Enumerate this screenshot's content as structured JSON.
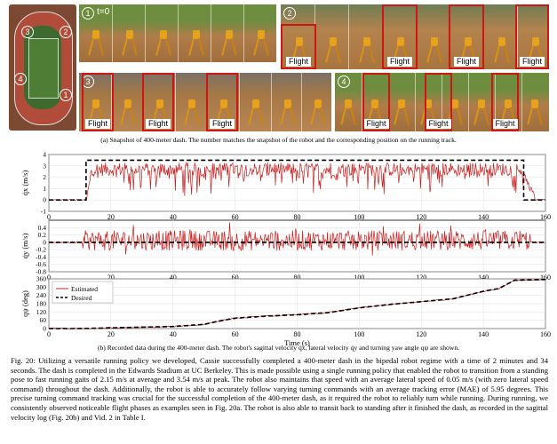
{
  "snapshots": {
    "map_markers": [
      "3",
      "2",
      "4",
      "1"
    ],
    "panel1": {
      "number": "1",
      "time_label": "t=0"
    },
    "panel2": {
      "number": "2",
      "flight_labels": [
        "Flight",
        "Flight",
        "Flight",
        "Flight"
      ]
    },
    "panel3": {
      "number": "3",
      "flight_labels": [
        "Flight",
        "Flight",
        "Flight"
      ]
    },
    "panel4": {
      "number": "4",
      "flight_labels": [
        "Flight",
        "Flight",
        "Flight"
      ]
    },
    "caption": "(a) Snapshot of 400-meter dash. The number matches the snapshot of the robot and the corresponding position on the running track."
  },
  "chart_data": [
    {
      "type": "line",
      "ylabel": "q̇x (m/s)",
      "ylim": [
        -1,
        4
      ],
      "yticks": [
        "4",
        "3",
        "2",
        "1",
        "0",
        "-1"
      ],
      "xlim": [
        0,
        160
      ],
      "xticks": [
        "0",
        "20",
        "40",
        "60",
        "80",
        "100",
        "120",
        "140",
        "160"
      ],
      "series": [
        {
          "role": "estimated",
          "color": "#c81e1e",
          "mean": 2.15,
          "peak": 3.54,
          "start": 12,
          "end": 153
        },
        {
          "role": "desired",
          "color": "#000000",
          "x": [
            0,
            12,
            12,
            153,
            153,
            160
          ],
          "y": [
            0,
            0,
            3.5,
            3.5,
            0,
            0
          ]
        }
      ]
    },
    {
      "type": "line",
      "ylabel": "q̇y (m/s)",
      "ylim": [
        -0.8,
        0.6
      ],
      "yticks": [
        "0.4",
        "0.2",
        "0",
        "-0.2",
        "-0.4",
        "-0.6",
        "-0.8"
      ],
      "xlim": [
        0,
        160
      ],
      "xticks": [
        "0",
        "20",
        "40",
        "60",
        "80",
        "100",
        "120",
        "140",
        "160"
      ],
      "series": [
        {
          "role": "estimated",
          "color": "#c81e1e",
          "mean": 0.05
        },
        {
          "role": "desired",
          "color": "#000000",
          "x": [
            0,
            160
          ],
          "y": [
            0,
            0
          ]
        }
      ]
    },
    {
      "type": "line",
      "ylabel": "qψ (deg)",
      "xlabel": "Time (s)",
      "ylim": [
        0,
        360
      ],
      "yticks": [
        "360",
        "300",
        "240",
        "180",
        "120",
        "60",
        "0"
      ],
      "xlim": [
        0,
        160
      ],
      "xticks": [
        "0",
        "20",
        "40",
        "60",
        "80",
        "100",
        "120",
        "140",
        "160"
      ],
      "legend": {
        "position": "top-left",
        "entries": [
          "Estimated",
          "Desired"
        ]
      },
      "series": [
        {
          "name": "Estimated",
          "color": "#c81e1e"
        },
        {
          "name": "Desired",
          "color": "#000000",
          "x": [
            0,
            10,
            20,
            30,
            40,
            50,
            55,
            60,
            70,
            80,
            90,
            100,
            110,
            120,
            130,
            140,
            145,
            150,
            160
          ],
          "y": [
            0,
            0,
            5,
            10,
            15,
            30,
            55,
            75,
            90,
            100,
            115,
            150,
            175,
            195,
            215,
            270,
            290,
            350,
            355
          ]
        }
      ]
    }
  ],
  "chart_caption": "(b) Recorded data during the 400-meter dash. The robot's sagittal velocity q̇x, lateral velocity q̇y and turning yaw angle qψ are shown.",
  "paragraph": "Fig. 20: Utilizing a versatile running policy we developed, Cassie successfully completed a 400-meter dash in the bipedal robot regime with a time of 2 minutes and 34 seconds. The dash is completed in the Edwards Stadium at UC Berkeley. This is made possible using a single running policy that enabled the robot to transition from a standing pose to fast running gaits of 2.15 m/s at average and 3.54 m/s at peak. The robot also maintains that speed with an average lateral speed of 0.05 m/s (with zero lateral speed command) throughout the dash. Additionally, the robot is able to accurately follow varying turning commands with an average tracking error (MAE) of 5.95 degrees. This precise turning command tracking was crucial for the successful completion of the 400-meter dash, as it required the robot to reliably turn while running. During running, we consistently observed noticeable flight phases as examples seen in Fig. 20a. The robot is also able to transit back to standing after it finished the dash, as recorded in the sagittal velocity log (Fig. 20b) and Vid. 2 in Table I."
}
